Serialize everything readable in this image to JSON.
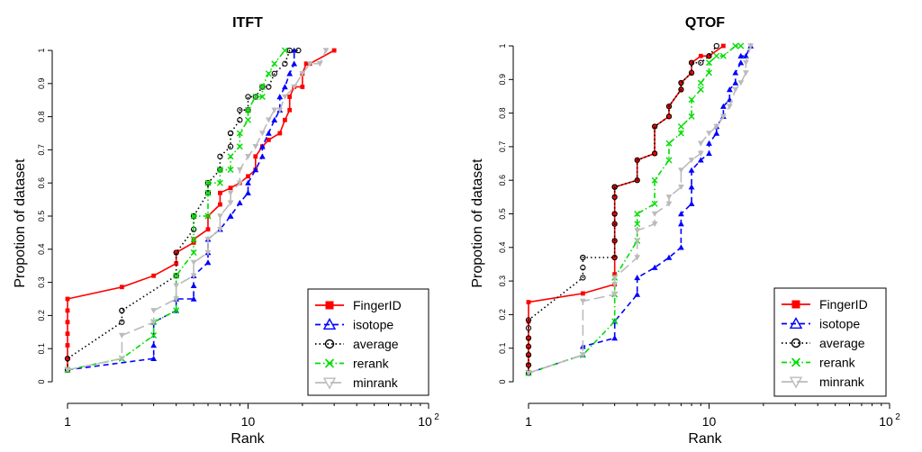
{
  "chart_data": [
    {
      "type": "line",
      "title": "ITFT",
      "xlabel": "Rank",
      "ylabel": "Propotion of dataset",
      "xscale": "log",
      "xlim": [
        1,
        100
      ],
      "ylim": [
        0,
        1
      ],
      "xticks": [
        "1",
        "10",
        "10",
        "2"
      ],
      "yticks": [
        "0",
        "0.1",
        "0.2",
        "0.3",
        "0.4",
        "0.5",
        "0.6",
        "0.7",
        "0.8",
        "0.9",
        "1"
      ],
      "legend_position": "bottom-right",
      "series": [
        {
          "name": "FingerID",
          "color": "#ff0000",
          "dash": "",
          "marker": "square",
          "x": [
            1,
            1,
            1,
            1,
            1,
            1,
            1,
            2,
            3,
            4,
            4,
            5,
            5,
            6,
            6,
            7,
            7,
            8,
            9,
            10,
            11,
            11,
            12,
            13,
            15,
            16,
            17,
            17,
            18,
            20,
            20,
            21,
            22,
            30
          ],
          "y": [
            0.036,
            0.07,
            0.11,
            0.145,
            0.18,
            0.215,
            0.25,
            0.286,
            0.32,
            0.357,
            0.39,
            0.42,
            0.43,
            0.46,
            0.5,
            0.535,
            0.57,
            0.585,
            0.6,
            0.62,
            0.64,
            0.68,
            0.71,
            0.73,
            0.75,
            0.79,
            0.82,
            0.86,
            0.89,
            0.89,
            0.93,
            0.96,
            0.96,
            1.0
          ]
        },
        {
          "name": "isotope",
          "color": "#0000ff",
          "dash": "6,4",
          "marker": "triangle",
          "x": [
            1,
            3,
            3,
            3,
            4,
            4,
            5,
            5,
            5,
            6,
            6,
            6,
            7,
            8,
            8,
            9,
            10,
            10,
            11,
            12,
            12,
            13,
            14,
            15,
            15,
            16,
            17,
            18,
            18
          ],
          "y": [
            0.036,
            0.07,
            0.11,
            0.18,
            0.215,
            0.25,
            0.25,
            0.29,
            0.32,
            0.36,
            0.39,
            0.43,
            0.46,
            0.5,
            0.5,
            0.54,
            0.57,
            0.6,
            0.64,
            0.68,
            0.71,
            0.75,
            0.79,
            0.82,
            0.86,
            0.89,
            0.93,
            0.96,
            1.0
          ]
        },
        {
          "name": "average",
          "color": "#000000",
          "dash": "1.5,3",
          "marker": "circle",
          "x": [
            1,
            1,
            2,
            2,
            2,
            4,
            4,
            5,
            5,
            5,
            6,
            6,
            7,
            7,
            7,
            8,
            8,
            8,
            9,
            9,
            10,
            10,
            11,
            12,
            13,
            14,
            16,
            17,
            19
          ],
          "y": [
            0.036,
            0.07,
            0.18,
            0.215,
            0.215,
            0.32,
            0.39,
            0.46,
            0.5,
            0.5,
            0.57,
            0.6,
            0.64,
            0.64,
            0.68,
            0.71,
            0.75,
            0.75,
            0.79,
            0.82,
            0.82,
            0.86,
            0.86,
            0.89,
            0.89,
            0.93,
            0.96,
            1.0,
            1.0
          ]
        },
        {
          "name": "rerank",
          "color": "#00dd00",
          "dash": "6,3,1.5,3",
          "marker": "x",
          "x": [
            1,
            2,
            3,
            3,
            4,
            4,
            5,
            5,
            5,
            6,
            6,
            6,
            7,
            7,
            8,
            8,
            9,
            9,
            10,
            10,
            11,
            12,
            12,
            13,
            14,
            16
          ],
          "y": [
            0.036,
            0.07,
            0.14,
            0.18,
            0.215,
            0.32,
            0.39,
            0.43,
            0.5,
            0.5,
            0.57,
            0.6,
            0.6,
            0.64,
            0.64,
            0.68,
            0.71,
            0.75,
            0.79,
            0.82,
            0.86,
            0.86,
            0.89,
            0.93,
            0.96,
            1.0
          ]
        },
        {
          "name": "minrank",
          "color": "#bbbbbb",
          "dash": "12,5",
          "marker": "triangle-down",
          "x": [
            1,
            2,
            2,
            3,
            3,
            4,
            4,
            5,
            5,
            6,
            6,
            7,
            7,
            8,
            8,
            9,
            9,
            10,
            11,
            12,
            13,
            14,
            15,
            16,
            18,
            20,
            22,
            25,
            27
          ],
          "y": [
            0.036,
            0.07,
            0.14,
            0.18,
            0.215,
            0.25,
            0.29,
            0.32,
            0.36,
            0.39,
            0.43,
            0.46,
            0.5,
            0.54,
            0.57,
            0.6,
            0.64,
            0.68,
            0.71,
            0.75,
            0.79,
            0.82,
            0.82,
            0.86,
            0.89,
            0.93,
            0.96,
            0.96,
            1.0
          ]
        }
      ]
    },
    {
      "type": "line",
      "title": "QTOF",
      "xlabel": "Rank",
      "ylabel": "Propotion of dataset",
      "xscale": "log",
      "xlim": [
        1,
        100
      ],
      "ylim": [
        0,
        1
      ],
      "xticks": [
        "1",
        "10",
        "10",
        "2"
      ],
      "yticks": [
        "0",
        "0.1",
        "0.2",
        "0.3",
        "0.4",
        "0.5",
        "0.6",
        "0.7",
        "0.8",
        "0.9",
        "1"
      ],
      "legend_position": "bottom-right",
      "series": [
        {
          "name": "FingerID",
          "color": "#ff0000",
          "dash": "",
          "marker": "square",
          "x": [
            1,
            1,
            1,
            1,
            1,
            1,
            1,
            2,
            3,
            3,
            3,
            3,
            3,
            3,
            3,
            3,
            4,
            4,
            5,
            5,
            6,
            6,
            7,
            7,
            8,
            8,
            9,
            10,
            12
          ],
          "y": [
            0.026,
            0.05,
            0.08,
            0.105,
            0.13,
            0.18,
            0.237,
            0.263,
            0.29,
            0.32,
            0.37,
            0.42,
            0.47,
            0.5,
            0.55,
            0.58,
            0.6,
            0.66,
            0.68,
            0.76,
            0.79,
            0.82,
            0.87,
            0.89,
            0.92,
            0.95,
            0.97,
            0.97,
            1.0
          ]
        },
        {
          "name": "isotope",
          "color": "#0000ff",
          "dash": "6,4",
          "marker": "triangle",
          "x": [
            1,
            2,
            2,
            3,
            3,
            4,
            4,
            5,
            6,
            7,
            7,
            7,
            8,
            8,
            8,
            9,
            10,
            10,
            11,
            11,
            12,
            12,
            13,
            13,
            14,
            14,
            15,
            15,
            16,
            17
          ],
          "y": [
            0.026,
            0.08,
            0.105,
            0.13,
            0.18,
            0.26,
            0.31,
            0.34,
            0.37,
            0.4,
            0.47,
            0.5,
            0.53,
            0.58,
            0.63,
            0.66,
            0.68,
            0.71,
            0.74,
            0.76,
            0.79,
            0.82,
            0.84,
            0.87,
            0.89,
            0.92,
            0.95,
            0.97,
            0.97,
            1.0
          ]
        },
        {
          "name": "average",
          "color": "#000000",
          "dash": "1.5,3",
          "marker": "circle",
          "x": [
            1,
            1,
            1,
            1,
            1,
            1,
            1,
            2,
            2,
            2,
            2,
            3,
            3,
            3,
            3,
            3,
            3,
            3,
            4,
            4,
            5,
            5,
            6,
            6,
            7,
            7,
            8,
            8,
            9,
            10,
            11
          ],
          "y": [
            0.026,
            0.05,
            0.08,
            0.105,
            0.13,
            0.16,
            0.184,
            0.31,
            0.34,
            0.37,
            0.37,
            0.37,
            0.42,
            0.47,
            0.5,
            0.55,
            0.58,
            0.58,
            0.6,
            0.66,
            0.68,
            0.76,
            0.79,
            0.82,
            0.87,
            0.89,
            0.92,
            0.95,
            0.95,
            0.97,
            1.0
          ]
        },
        {
          "name": "rerank",
          "color": "#00dd00",
          "dash": "6,3,1.5,3",
          "marker": "x",
          "x": [
            1,
            2,
            3,
            3,
            3,
            4,
            4,
            4,
            5,
            5,
            6,
            6,
            7,
            7,
            8,
            8,
            9,
            9,
            10,
            10,
            11,
            12,
            14,
            15
          ],
          "y": [
            0.026,
            0.08,
            0.18,
            0.26,
            0.31,
            0.42,
            0.47,
            0.5,
            0.53,
            0.6,
            0.66,
            0.71,
            0.74,
            0.76,
            0.79,
            0.84,
            0.87,
            0.89,
            0.92,
            0.95,
            0.97,
            0.97,
            1.0,
            1.0
          ]
        },
        {
          "name": "minrank",
          "color": "#bbbbbb",
          "dash": "12,5",
          "marker": "triangle-down",
          "x": [
            1,
            2,
            2,
            3,
            3,
            3,
            4,
            4,
            4,
            5,
            5,
            6,
            6,
            7,
            7,
            8,
            9,
            9,
            10,
            11,
            12,
            13,
            14,
            15,
            16,
            16,
            17
          ],
          "y": [
            0.026,
            0.08,
            0.24,
            0.26,
            0.29,
            0.31,
            0.37,
            0.42,
            0.45,
            0.47,
            0.5,
            0.53,
            0.55,
            0.58,
            0.63,
            0.66,
            0.68,
            0.71,
            0.74,
            0.76,
            0.79,
            0.82,
            0.87,
            0.89,
            0.92,
            0.95,
            1.0
          ]
        }
      ]
    }
  ]
}
